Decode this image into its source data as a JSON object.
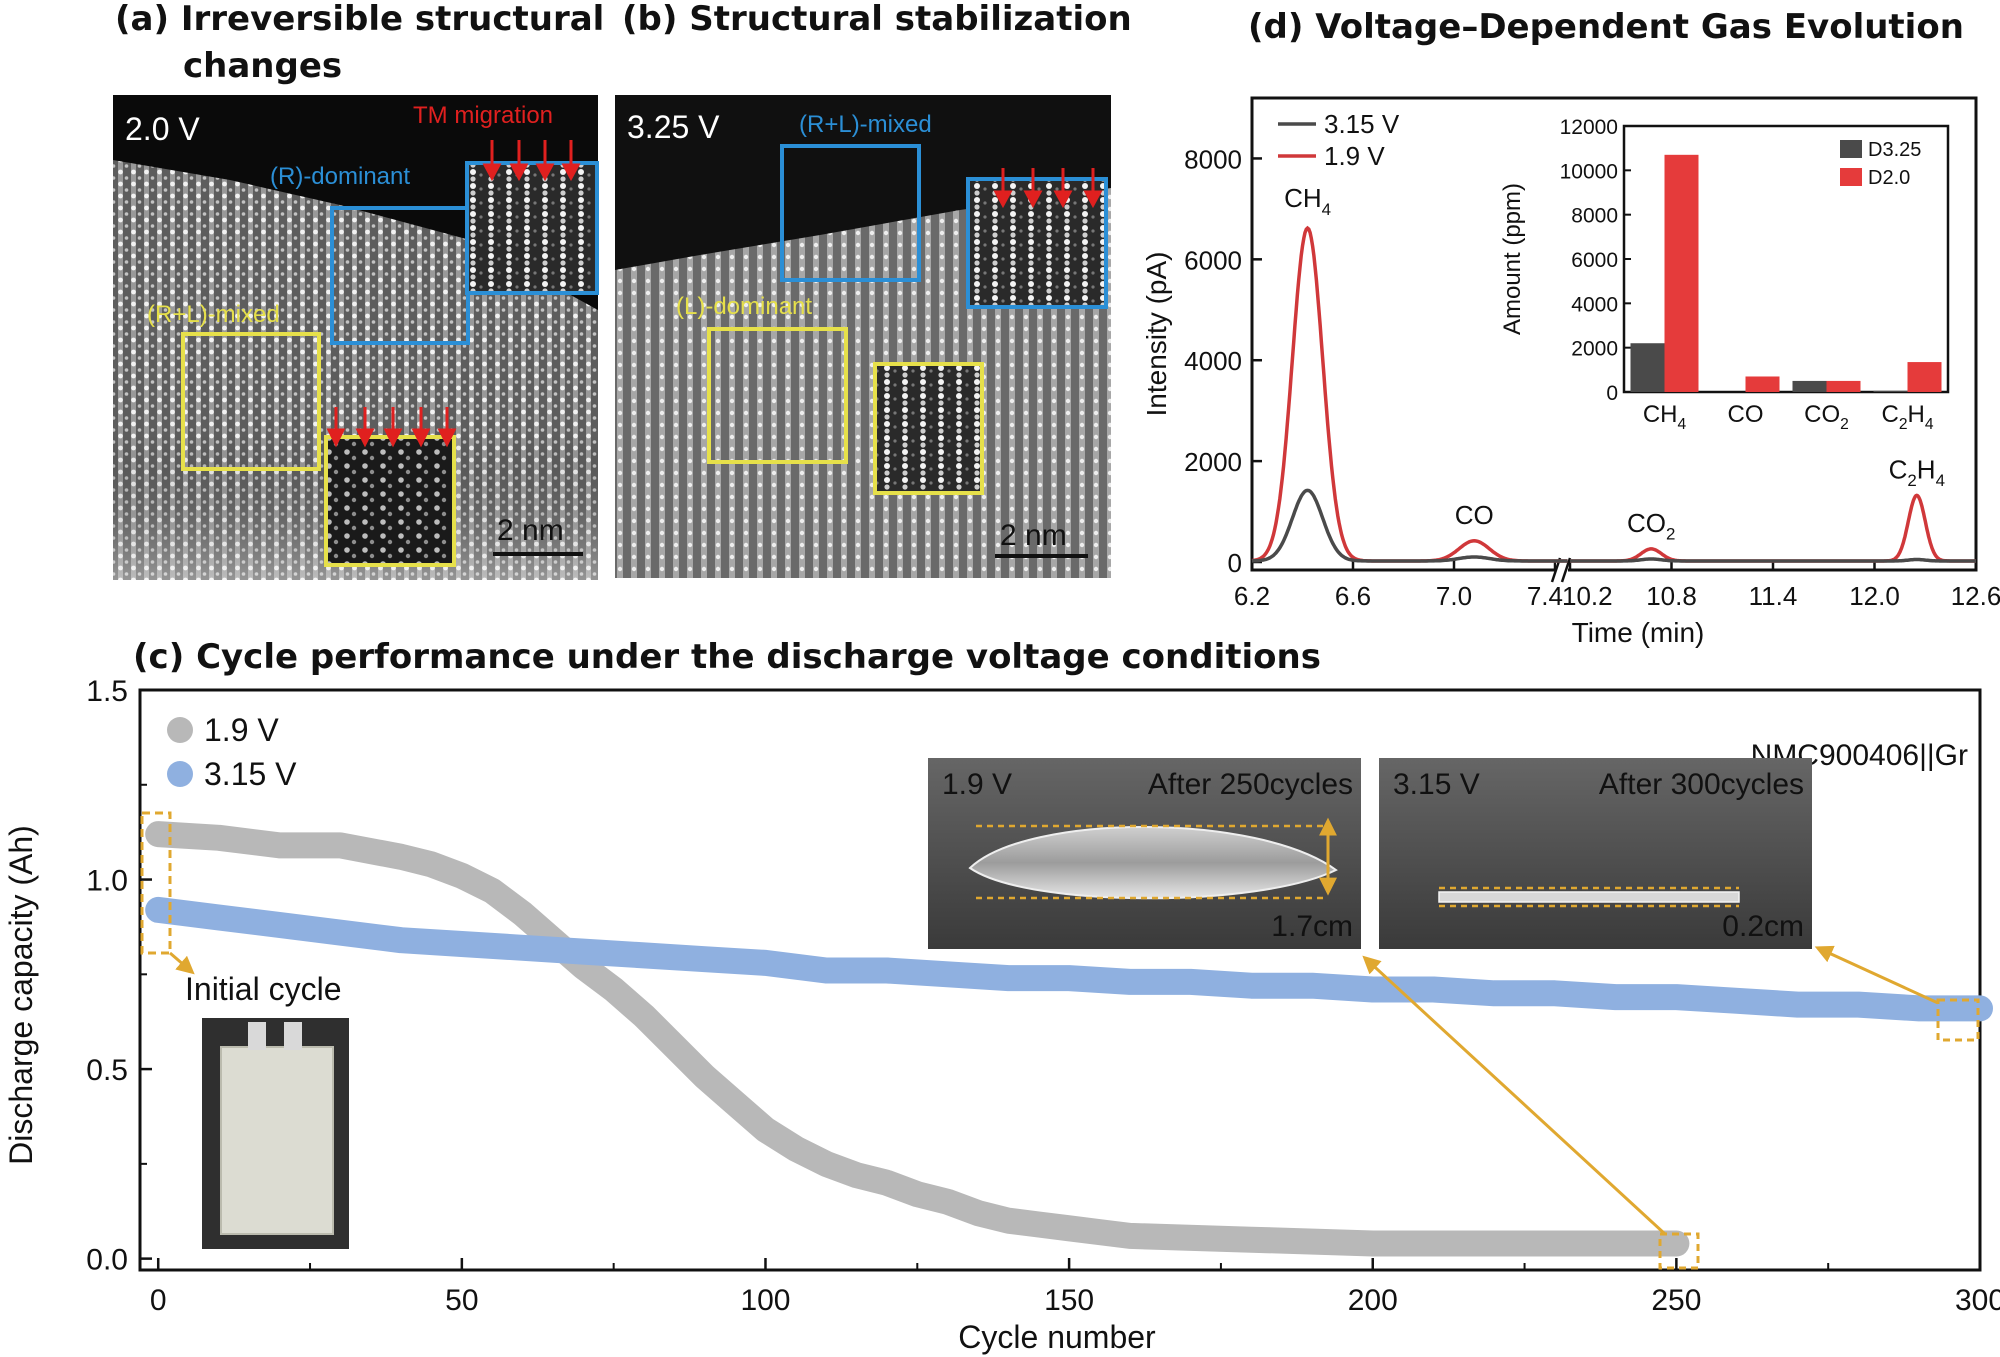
{
  "panel_a": {
    "title_line1": "(a) Irreversible structural",
    "title_line2": "changes",
    "voltage": "2.0 V",
    "label_tm": "TM migration",
    "label_r": "(R)-dominant",
    "label_rl": "(R+L)-mixed",
    "scale": "2 nm"
  },
  "panel_b": {
    "title": "(b) Structural stabilization",
    "voltage": "3.25 V",
    "label_rl": "(R+L)-mixed",
    "label_l": "(L)-dominant",
    "scale": "2 nm"
  },
  "colors": {
    "gray_line": "#4a4a4a",
    "red_line": "#d0383a",
    "bar_dark": "#4a4a4a",
    "bar_red": "#e53b3b",
    "cap_gray": "#b8b8b8",
    "cap_blue": "#8fb0e0",
    "box_blue": "#2b8fd6",
    "box_yellow": "#e6e04a",
    "arrow_red": "#e0201f",
    "callout_gold": "#e0a830"
  },
  "chart_data": [
    {
      "id": "d",
      "type": "line",
      "title": "(d) Voltage–Dependent Gas Evolution",
      "xlabel": "Time (min)",
      "ylabel": "Intensity (pA)",
      "x_ticks": [
        "6.2",
        "6.6",
        "7.0",
        "7.4",
        "10.2",
        "10.8",
        "11.4",
        "12.0",
        "12.6"
      ],
      "y_ticks": [
        "0",
        "2000",
        "4000",
        "6000",
        "8000"
      ],
      "ylim": [
        0,
        9000
      ],
      "axis_break": true,
      "peaks": [
        {
          "name": "CH",
          "sub": "4",
          "x": 6.42,
          "v315": 1400,
          "v19": 6600
        },
        {
          "name": "CO",
          "sub": "",
          "x": 7.08,
          "v315": 80,
          "v19": 400
        },
        {
          "name": "CO",
          "sub": "2",
          "x": 10.68,
          "v315": 40,
          "v19": 240
        },
        {
          "name": "C",
          "sub": "2",
          "name2": "H",
          "sub2": "4",
          "x": 12.25,
          "v315": 30,
          "v19": 1300
        }
      ],
      "legend": [
        {
          "name": "3.15 V",
          "color": "#4a4a4a"
        },
        {
          "name": "1.9 V",
          "color": "#d0383a"
        }
      ],
      "inset": {
        "type": "bar",
        "ylabel": "Amount (ppm)",
        "y_ticks": [
          "0",
          "2000",
          "4000",
          "6000",
          "8000",
          "10000",
          "12000"
        ],
        "ylim": [
          0,
          12000
        ],
        "categories": [
          "CH4",
          "CO",
          "CO2",
          "C2H4"
        ],
        "series": [
          {
            "name": "D3.25",
            "values": [
              2200,
              0,
              500,
              50
            ],
            "color": "#4a4a4a"
          },
          {
            "name": "D2.0",
            "values": [
              10700,
              700,
              500,
              1350
            ],
            "color": "#e53b3b"
          }
        ]
      }
    },
    {
      "id": "c",
      "type": "scatter",
      "title": "(c) Cycle performance under the discharge voltage conditions",
      "xlabel": "Cycle number",
      "ylabel": "Discharge capacity (Ah)",
      "xlim": [
        -3,
        300
      ],
      "ylim": [
        -0.03,
        1.5
      ],
      "x_ticks": [
        "0",
        "50",
        "100",
        "150",
        "200",
        "250",
        "300"
      ],
      "y_ticks": [
        "0.0",
        "0.5",
        "1.0",
        "1.5"
      ],
      "legend": [
        {
          "name": "1.9 V",
          "color": "#b8b8b8"
        },
        {
          "name": "3.15 V",
          "color": "#8fb0e0"
        }
      ],
      "cell_label": "NMC900406||Gr",
      "series": [
        {
          "name": "1.9 V",
          "points": [
            [
              0,
              1.12
            ],
            [
              10,
              1.11
            ],
            [
              20,
              1.09
            ],
            [
              30,
              1.09
            ],
            [
              40,
              1.06
            ],
            [
              45,
              1.04
            ],
            [
              50,
              1.01
            ],
            [
              55,
              0.97
            ],
            [
              60,
              0.91
            ],
            [
              65,
              0.84
            ],
            [
              70,
              0.77
            ],
            [
              75,
              0.71
            ],
            [
              80,
              0.64
            ],
            [
              85,
              0.56
            ],
            [
              90,
              0.48
            ],
            [
              95,
              0.41
            ],
            [
              100,
              0.34
            ],
            [
              105,
              0.29
            ],
            [
              110,
              0.25
            ],
            [
              115,
              0.22
            ],
            [
              120,
              0.2
            ],
            [
              125,
              0.17
            ],
            [
              130,
              0.15
            ],
            [
              135,
              0.12
            ],
            [
              140,
              0.1
            ],
            [
              145,
              0.09
            ],
            [
              150,
              0.08
            ],
            [
              155,
              0.07
            ],
            [
              160,
              0.06
            ],
            [
              180,
              0.05
            ],
            [
              200,
              0.04
            ],
            [
              220,
              0.04
            ],
            [
              250,
              0.04
            ]
          ]
        },
        {
          "name": "3.15 V",
          "points": [
            [
              0,
              0.92
            ],
            [
              10,
              0.9
            ],
            [
              20,
              0.88
            ],
            [
              30,
              0.86
            ],
            [
              40,
              0.84
            ],
            [
              50,
              0.83
            ],
            [
              60,
              0.82
            ],
            [
              70,
              0.81
            ],
            [
              80,
              0.8
            ],
            [
              90,
              0.79
            ],
            [
              100,
              0.78
            ],
            [
              110,
              0.76
            ],
            [
              120,
              0.76
            ],
            [
              130,
              0.75
            ],
            [
              140,
              0.74
            ],
            [
              150,
              0.74
            ],
            [
              160,
              0.73
            ],
            [
              170,
              0.73
            ],
            [
              180,
              0.72
            ],
            [
              190,
              0.72
            ],
            [
              200,
              0.71
            ],
            [
              210,
              0.71
            ],
            [
              220,
              0.7
            ],
            [
              230,
              0.7
            ],
            [
              240,
              0.69
            ],
            [
              250,
              0.69
            ],
            [
              260,
              0.68
            ],
            [
              270,
              0.67
            ],
            [
              280,
              0.67
            ],
            [
              290,
              0.66
            ],
            [
              300,
              0.66
            ]
          ]
        }
      ],
      "annotations": {
        "initial_cycle": "Initial cycle",
        "photo1_voltage": "1.9 V",
        "photo1_cycles": "After 250cycles",
        "photo1_height": "1.7cm",
        "photo2_voltage": "3.15 V",
        "photo2_cycles": "After 300cycles",
        "photo2_height": "0.2cm"
      }
    }
  ]
}
